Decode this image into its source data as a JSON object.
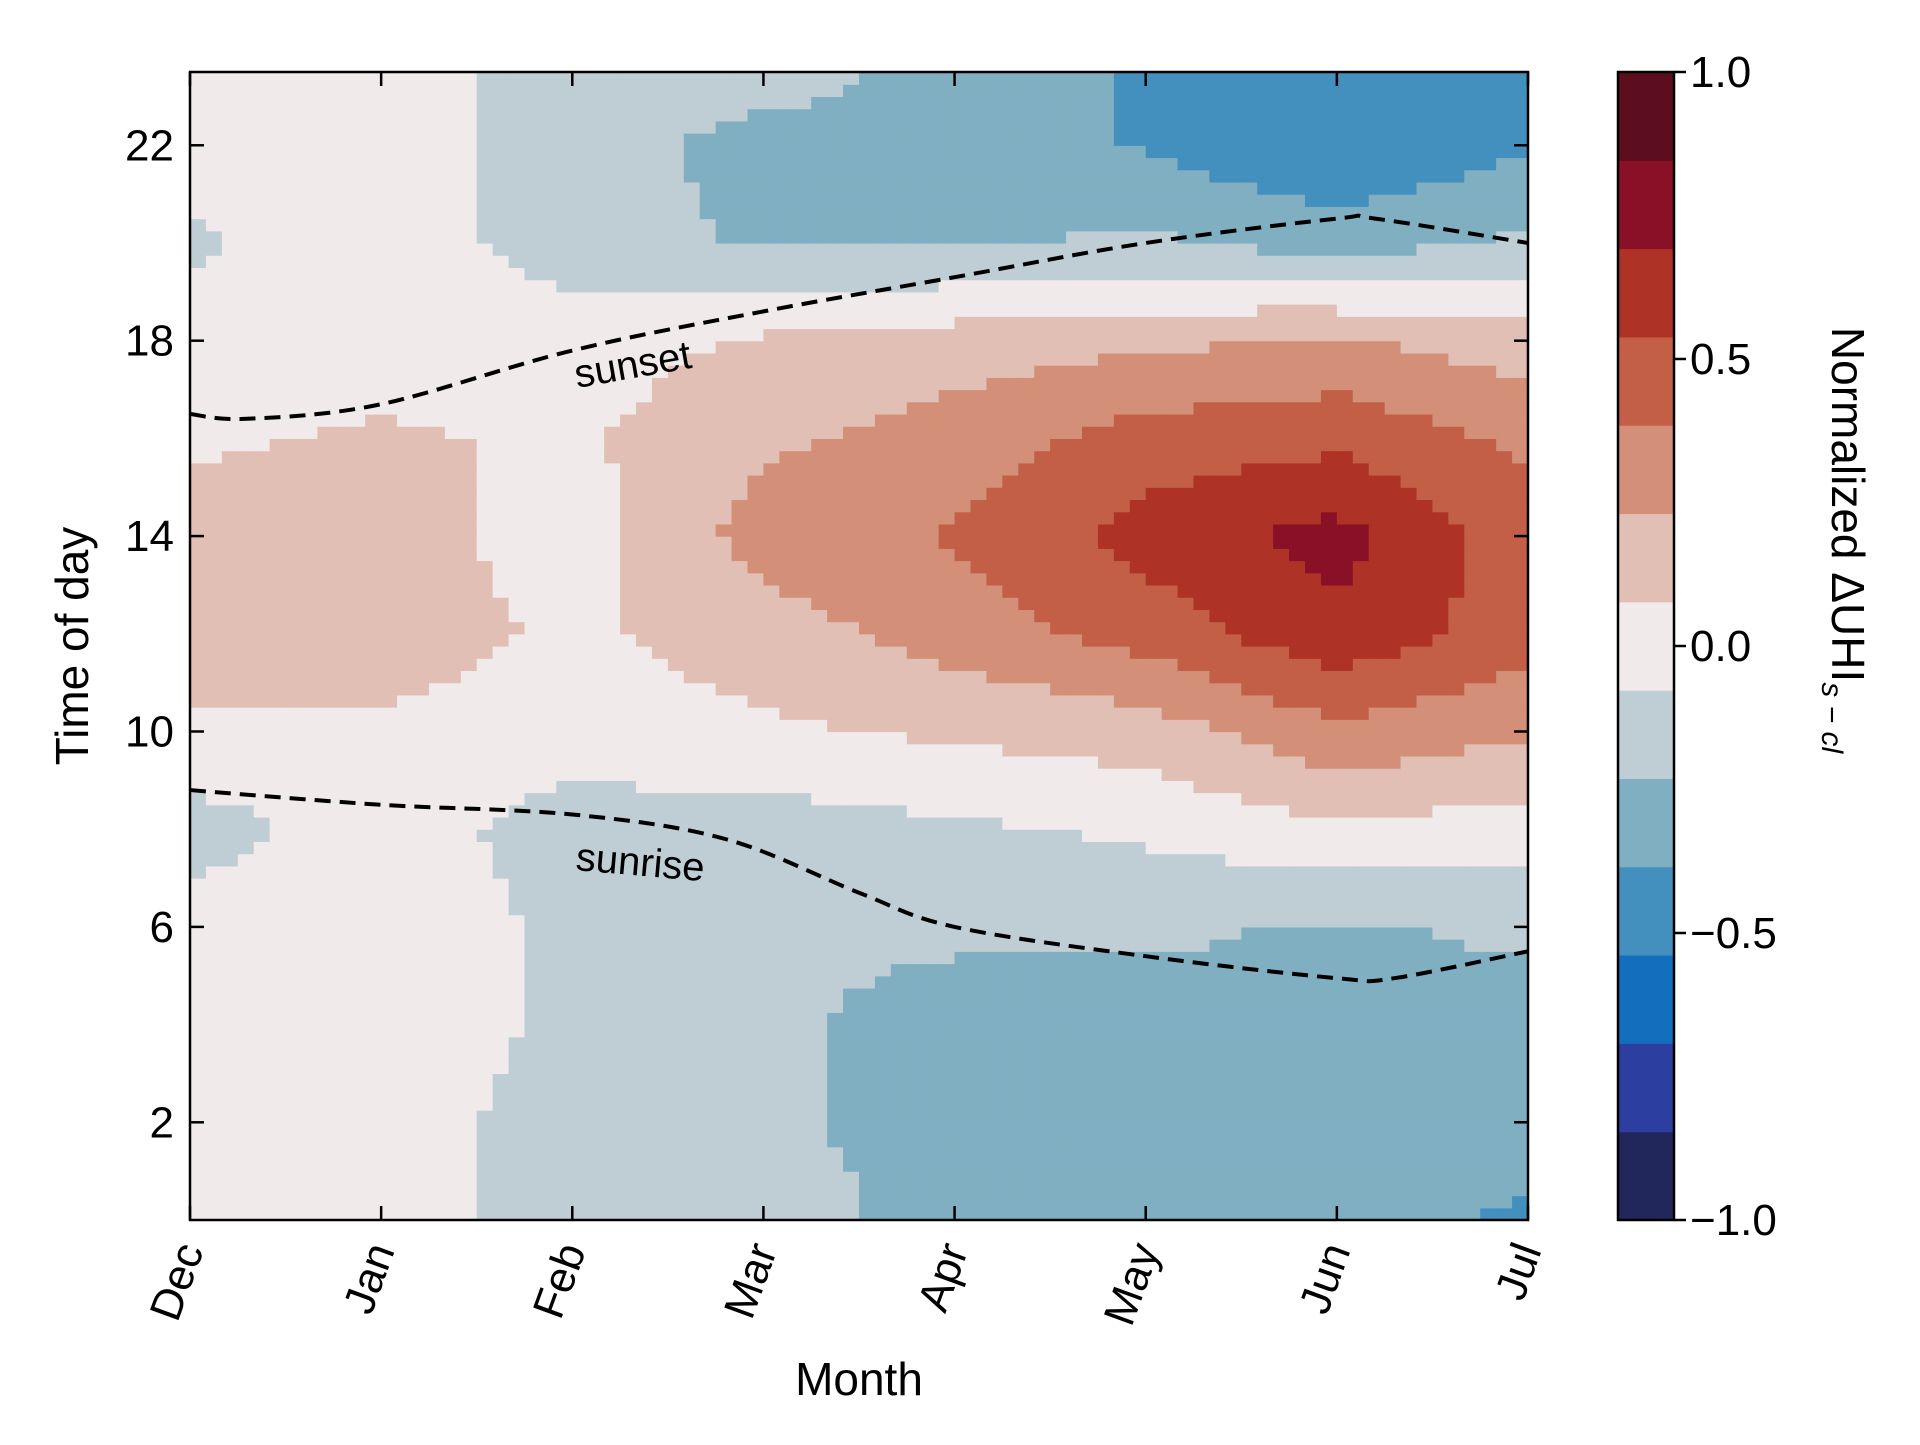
{
  "chart_data": {
    "type": "heatmap",
    "title": "",
    "xlabel": "Month",
    "ylabel": "Time of day",
    "colorbar_label": "Normalized ΔUHI",
    "colorbar_label_sub": "s − cl",
    "x_ticks": [
      "Dec",
      "Jan",
      "Feb",
      "Mar",
      "Apr",
      "May",
      "Jun",
      "Jul"
    ],
    "y_ticks": [
      "2",
      "6",
      "10",
      "14",
      "18",
      "22"
    ],
    "y_tick_values": [
      2,
      6,
      10,
      14,
      18,
      22
    ],
    "ylim": [
      0,
      23.5
    ],
    "xlim": [
      0,
      7
    ],
    "colorbar_ticks": [
      "−1.0",
      "−0.5",
      "0.0",
      "0.5",
      "1.0"
    ],
    "colorbar_tick_values": [
      -1.0,
      -0.5,
      0.0,
      0.5,
      1.0
    ],
    "levels": [
      -1.0,
      -0.8462,
      -0.6923,
      -0.5385,
      -0.3846,
      -0.2308,
      -0.0769,
      0.0769,
      0.2308,
      0.3846,
      0.5385,
      0.6923,
      0.8462,
      1.0
    ],
    "colors": [
      "#21275a",
      "#2c3fa0",
      "#136ebd",
      "#438fbd",
      "#80afc2",
      "#bfcdd4",
      "#f1eaea",
      "#e1bfb4",
      "#d38f77",
      "#c35f46",
      "#ae3225",
      "#8a1027",
      "#5c0e1e"
    ],
    "hours": [
      0,
      2,
      4,
      6,
      8,
      10,
      12,
      14,
      16,
      18,
      20,
      22,
      23.5
    ],
    "values": [
      [
        -0.05,
        -0.05,
        -0.05,
        0.0,
        -0.15,
        0.05,
        0.15,
        0.15,
        0.05,
        0.0,
        -0.1,
        0.0,
        0.0
      ],
      [
        0.0,
        0.0,
        0.0,
        0.0,
        0.0,
        0.05,
        0.15,
        0.15,
        0.1,
        0.0,
        0.0,
        0.0,
        0.0
      ],
      [
        -0.15,
        -0.15,
        -0.1,
        -0.1,
        -0.15,
        0.0,
        0.05,
        0.0,
        0.05,
        0.0,
        -0.15,
        -0.15,
        -0.15
      ],
      [
        -0.15,
        -0.2,
        -0.2,
        -0.2,
        -0.15,
        0.05,
        0.15,
        0.3,
        0.2,
        0.1,
        -0.25,
        -0.3,
        -0.15
      ],
      [
        -0.3,
        -0.3,
        -0.3,
        -0.2,
        -0.1,
        0.1,
        0.3,
        0.4,
        0.3,
        0.15,
        -0.25,
        -0.3,
        -0.3
      ],
      [
        -0.3,
        -0.3,
        -0.3,
        -0.2,
        -0.05,
        0.15,
        0.45,
        0.6,
        0.45,
        0.2,
        -0.2,
        -0.4,
        -0.4
      ],
      [
        -0.35,
        -0.3,
        -0.3,
        -0.25,
        0.05,
        0.35,
        0.65,
        0.75,
        0.5,
        0.25,
        -0.3,
        -0.55,
        -0.4
      ],
      [
        -0.4,
        -0.35,
        -0.3,
        -0.2,
        0.0,
        0.25,
        0.45,
        0.45,
        0.35,
        0.15,
        -0.2,
        -0.4,
        -0.4
      ]
    ],
    "series": [
      {
        "name": "sunset",
        "x": [
          0,
          0.3,
          1,
          2,
          3,
          4,
          5,
          6,
          6.2,
          7
        ],
        "y": [
          16.5,
          16.4,
          16.7,
          17.8,
          18.6,
          19.3,
          20.0,
          20.5,
          20.5,
          20.0
        ]
      },
      {
        "name": "sunrise",
        "x": [
          0,
          1,
          2,
          2.8,
          3.5,
          4,
          5,
          6,
          6.3,
          7
        ],
        "y": [
          8.8,
          8.5,
          8.3,
          7.8,
          6.7,
          6.0,
          5.4,
          4.95,
          4.95,
          5.5
        ]
      }
    ],
    "grid": false,
    "legend": "colorbar-right"
  }
}
